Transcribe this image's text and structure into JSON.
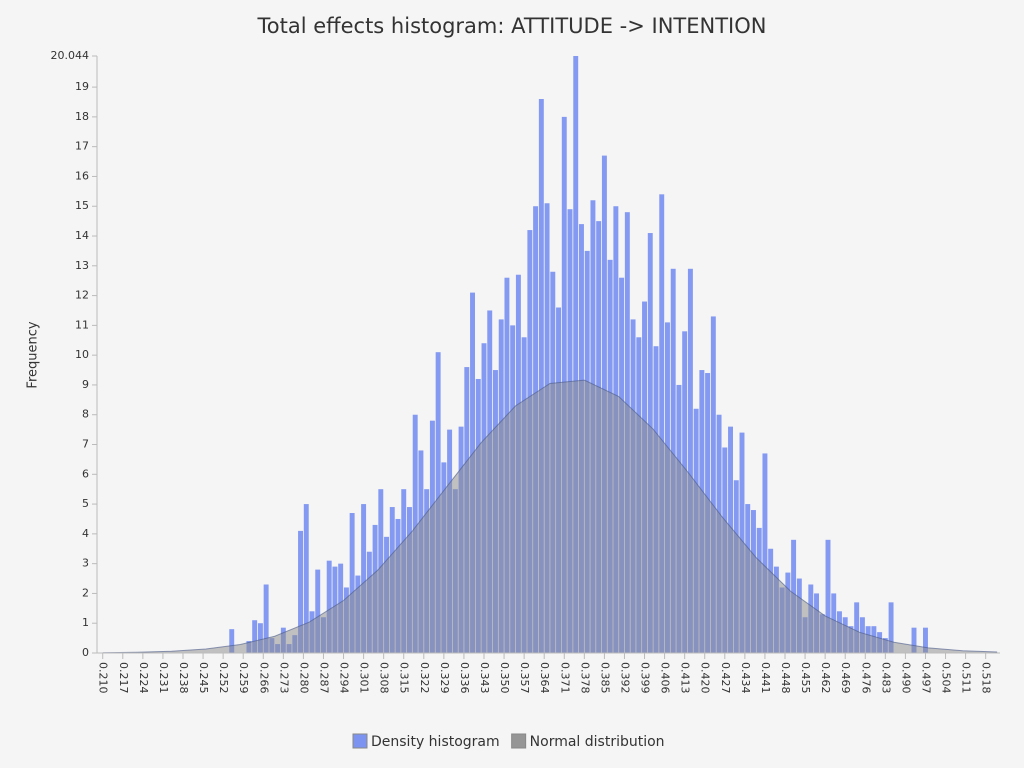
{
  "chart_data": {
    "type": "histogram",
    "title": "Total effects histogram: ATTITUDE -> INTENTION",
    "y_label": "Frequency",
    "xlim": [
      0.208,
      0.523
    ],
    "ylim": [
      0,
      20.044
    ],
    "xticks": [
      {
        "value": 0.21,
        "label": "0.210"
      },
      0.217,
      0.224,
      0.231,
      0.238,
      0.245,
      0.252,
      0.259,
      0.266,
      0.273,
      {
        "value": 0.28,
        "label": "0.280"
      },
      0.287,
      0.294,
      0.301,
      0.308,
      0.315,
      0.322,
      0.329,
      0.336,
      0.343,
      {
        "value": 0.35,
        "label": "0.350"
      },
      0.357,
      0.364,
      0.371,
      0.378,
      0.385,
      0.392,
      0.399,
      0.406,
      0.413,
      {
        "value": 0.42,
        "label": "0.420"
      },
      0.427,
      0.434,
      0.441,
      0.448,
      0.455,
      0.462,
      0.469,
      0.476,
      0.483,
      {
        "value": 0.49,
        "label": "0.490"
      },
      0.497,
      0.504,
      0.511,
      0.518
    ],
    "yticks": [
      0,
      1,
      2,
      3,
      4,
      5,
      6,
      7,
      8,
      9,
      10,
      11,
      12,
      13,
      14,
      15,
      16,
      17,
      18,
      19,
      20.044
    ],
    "bins": [
      0.252,
      0.254,
      0.256,
      0.258,
      0.26,
      0.262,
      0.264,
      0.266,
      0.268,
      0.27,
      0.272,
      0.274,
      0.276,
      0.278,
      0.28,
      0.282,
      0.284,
      0.286,
      0.288,
      0.29,
      0.292,
      0.294,
      0.296,
      0.298,
      0.3,
      0.302,
      0.304,
      0.306,
      0.308,
      0.31,
      0.312,
      0.314,
      0.316,
      0.318,
      0.32,
      0.322,
      0.324,
      0.326,
      0.328,
      0.33,
      0.332,
      0.334,
      0.336,
      0.338,
      0.34,
      0.342,
      0.344,
      0.346,
      0.348,
      0.35,
      0.352,
      0.354,
      0.356,
      0.358,
      0.36,
      0.362,
      0.364,
      0.366,
      0.368,
      0.37,
      0.372,
      0.374,
      0.376,
      0.378,
      0.38,
      0.382,
      0.384,
      0.386,
      0.388,
      0.39,
      0.392,
      0.394,
      0.396,
      0.398,
      0.4,
      0.402,
      0.404,
      0.406,
      0.408,
      0.41,
      0.412,
      0.414,
      0.416,
      0.418,
      0.42,
      0.422,
      0.424,
      0.426,
      0.428,
      0.43,
      0.432,
      0.434,
      0.436,
      0.438,
      0.44,
      0.442,
      0.444,
      0.446,
      0.448,
      0.45,
      0.452,
      0.454,
      0.456,
      0.458,
      0.46,
      0.462,
      0.464,
      0.466,
      0.468,
      0.47,
      0.472,
      0.474,
      0.476,
      0.478,
      0.48,
      0.482,
      0.484,
      0.486,
      0.488,
      0.49,
      0.492,
      0.494,
      0.496,
      0.498
    ],
    "series": [
      {
        "name": "Density histogram",
        "type": "histogram",
        "color": "#7088f0",
        "values": [
          0,
          0.8,
          0,
          0,
          0.4,
          1.1,
          1.0,
          2.3,
          0.5,
          0.3,
          0.85,
          0.3,
          0.6,
          4.1,
          5.0,
          1.4,
          2.8,
          1.2,
          3.1,
          2.9,
          3.0,
          2.2,
          4.7,
          2.6,
          5.0,
          3.4,
          4.3,
          5.5,
          3.9,
          4.9,
          4.5,
          5.5,
          4.9,
          8.0,
          6.8,
          5.5,
          7.8,
          10.1,
          6.4,
          7.5,
          5.5,
          7.6,
          9.6,
          12.1,
          9.2,
          10.4,
          11.5,
          9.5,
          11.2,
          12.6,
          11.0,
          12.7,
          10.6,
          14.2,
          15.0,
          18.6,
          15.1,
          12.8,
          11.6,
          18.0,
          14.9,
          20.044,
          14.4,
          13.5,
          15.2,
          14.5,
          16.7,
          13.2,
          15.0,
          12.6,
          14.8,
          11.2,
          10.6,
          11.8,
          14.1,
          10.3,
          15.4,
          11.1,
          12.9,
          9.0,
          10.8,
          12.9,
          8.2,
          9.5,
          9.4,
          11.3,
          8.0,
          6.9,
          7.6,
          5.8,
          7.4,
          5.0,
          4.8,
          4.2,
          6.7,
          3.5,
          2.9,
          2.2,
          2.7,
          3.8,
          2.5,
          1.2,
          2.3,
          2.0,
          1.3,
          3.8,
          2.0,
          1.4,
          1.2,
          0.9,
          1.7,
          1.2,
          0.9,
          0.9,
          0.7,
          0.5,
          1.7,
          0,
          0,
          0,
          0.85,
          0,
          0.85
        ]
      },
      {
        "name": "Normal distribution",
        "type": "area",
        "color": "#8c8c8c",
        "x": [
          0.21,
          0.222,
          0.234,
          0.246,
          0.258,
          0.27,
          0.282,
          0.294,
          0.306,
          0.318,
          0.33,
          0.342,
          0.354,
          0.366,
          0.378,
          0.39,
          0.402,
          0.414,
          0.426,
          0.438,
          0.45,
          0.462,
          0.474,
          0.486,
          0.498,
          0.51,
          0.522
        ],
        "values": [
          0.009,
          0.024,
          0.058,
          0.134,
          0.285,
          0.563,
          1.034,
          1.762,
          2.788,
          4.093,
          5.58,
          7.062,
          8.297,
          9.049,
          9.162,
          8.611,
          7.514,
          6.086,
          4.577,
          3.194,
          2.07,
          1.245,
          0.695,
          0.36,
          0.174,
          0.077,
          0.032
        ]
      }
    ]
  }
}
